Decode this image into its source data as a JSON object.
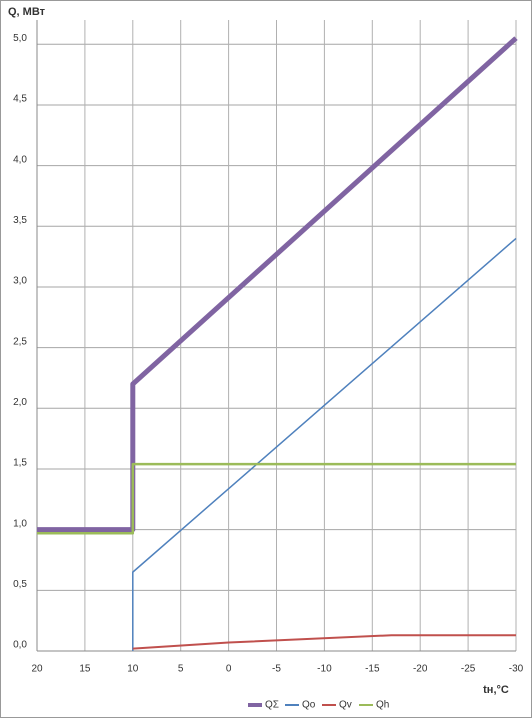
{
  "chart_data": {
    "type": "line",
    "y_label": "Q, МВт",
    "x_label": "tн,°C",
    "xlim": [
      20,
      -30
    ],
    "xticks": [
      20,
      15,
      10,
      5,
      0,
      -5,
      -10,
      -15,
      -20,
      -25,
      -30
    ],
    "ylim": [
      0,
      5.2
    ],
    "yticks": [
      {
        "value": 0,
        "label": "0,0"
      },
      {
        "value": 0.5,
        "label": "0,5"
      },
      {
        "value": 1,
        "label": "1,0"
      },
      {
        "value": 1.5,
        "label": "1,5"
      },
      {
        "value": 2,
        "label": "2,0"
      },
      {
        "value": 2.5,
        "label": "2,5"
      },
      {
        "value": 3,
        "label": "3,0"
      },
      {
        "value": 3.5,
        "label": "3,5"
      },
      {
        "value": 4,
        "label": "4,0"
      },
      {
        "value": 4.5,
        "label": "4,5"
      },
      {
        "value": 5,
        "label": "5,0"
      }
    ],
    "grid": true,
    "series": [
      {
        "name": "QΣ",
        "color": "#8064a2",
        "width": 5,
        "x": [
          20,
          10,
          10,
          -30
        ],
        "values": [
          1.0,
          1.0,
          2.2,
          5.05
        ]
      },
      {
        "name": "Qo",
        "color": "#4f81bd",
        "width": 1.5,
        "x": [
          10,
          10,
          -30
        ],
        "values": [
          0,
          0.65,
          3.4
        ]
      },
      {
        "name": "Qv",
        "color": "#c0504d",
        "width": 2,
        "x": [
          10,
          0,
          -17,
          -30
        ],
        "values": [
          0.02,
          0.07,
          0.13,
          0.13
        ]
      },
      {
        "name": "Qh",
        "color": "#9bbb59",
        "width": 2.5,
        "x": [
          20,
          10,
          10,
          -30
        ],
        "values": [
          0.97,
          0.97,
          1.54,
          1.54
        ]
      }
    ]
  }
}
